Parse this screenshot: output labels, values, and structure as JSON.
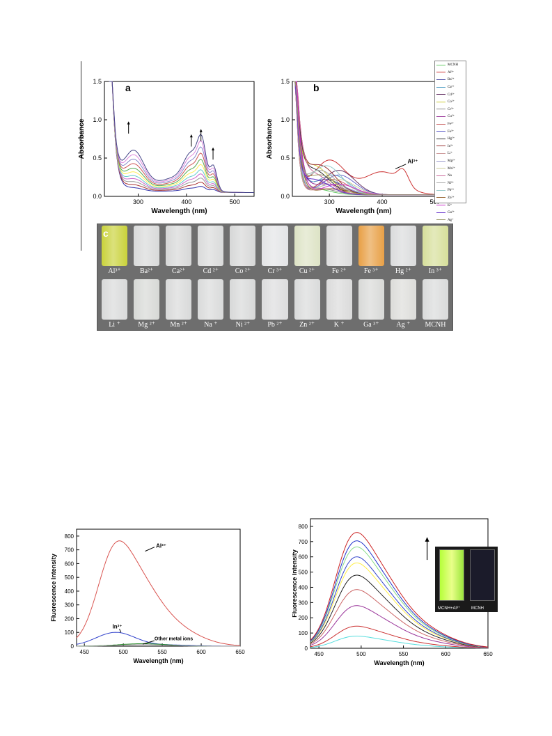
{
  "chart_data": [
    {
      "id": "a",
      "type": "line",
      "panel_label": "a",
      "xlabel": "Wavelength (nm)",
      "ylabel": "Absorbance",
      "xlim": [
        230,
        540
      ],
      "ylim": [
        0,
        1.5
      ],
      "xticks": [
        300,
        400,
        500
      ],
      "yticks": [
        0.0,
        0.5,
        1.0,
        1.5
      ],
      "annotations": [
        "arrow-up-280",
        "arrow-up-410",
        "arrow-up-430",
        "arrow-up-455"
      ],
      "series_peaks": [
        0.06,
        0.1,
        0.14,
        0.18,
        0.22,
        0.27,
        0.32,
        0.38,
        0.44,
        0.5,
        0.56
      ],
      "series_colors": [
        "#3333aa",
        "#aa3333",
        "#999999",
        "#cc66cc",
        "#66cccc",
        "#ffee55",
        "#55aa55",
        "#cc5555",
        "#8888cc",
        "#dd88dd",
        "#444488"
      ]
    },
    {
      "id": "b",
      "type": "line",
      "panel_label": "b",
      "xlabel": "Wavelength (nm)",
      "ylabel": "Absorbance",
      "xlim": [
        230,
        500
      ],
      "ylim": [
        0,
        1.5
      ],
      "xticks": [
        300,
        400,
        500
      ],
      "yticks": [
        0.0,
        0.5,
        1.0,
        1.5
      ],
      "annotation": "Al3+",
      "legend": [
        "MCNH",
        "Al3+",
        "Ba2+",
        "Ca2+",
        "Cd2+",
        "Co2+",
        "Cr3+",
        "Cu2+",
        "Fe2+",
        "Fe3+",
        "Hg2+",
        "In3+",
        "Li+",
        "Mg2+",
        "Mn2+",
        "Na+",
        "Ni2+",
        "Pb2+",
        "Zn2+",
        "K+",
        "Ga3+",
        "Ag+"
      ],
      "legend_display": [
        "MCNH",
        "Al³⁺",
        "Ba²⁺",
        "Ca²⁺",
        "Cd²⁺",
        "Co²⁺",
        "Cr³⁺",
        "Cu²⁺",
        "Fe²⁺",
        "Fe³⁺",
        "Hg²⁺",
        "In³⁺",
        "Li⁺",
        "Mg²⁺",
        "Mn²⁺",
        "Na",
        "Ni²⁺",
        "Pb²⁺",
        "Zn²⁺",
        "K⁺",
        "Ga³⁺",
        "Ag⁺"
      ],
      "legend_colors": [
        "#66cc66",
        "#cc3333",
        "#333399",
        "#66aacc",
        "#663366",
        "#cccc33",
        "#888888",
        "#993399",
        "#cc6666",
        "#6666cc",
        "#333333",
        "#993333",
        "#cc9999",
        "#9999cc",
        "#cccc99",
        "#cc6699",
        "#aaaaaa",
        "#99cccc",
        "#996633",
        "#cc33cc",
        "#6633cc",
        "#999966"
      ]
    },
    {
      "id": "d",
      "type": "line",
      "xlabel": "Wavelength (nm)",
      "ylabel": "Fluorescence Intensity",
      "xlim": [
        440,
        650
      ],
      "ylim": [
        0,
        850
      ],
      "xticks": [
        450,
        500,
        550,
        600,
        650
      ],
      "yticks": [
        0,
        100,
        200,
        300,
        400,
        500,
        600,
        700,
        800
      ],
      "series": [
        {
          "label": "Al3+",
          "peak_x": 505,
          "peak_y": 765,
          "color": "#d9534f"
        },
        {
          "label": "In3+",
          "peak_x": 490,
          "peak_y": 100,
          "color": "#3344cc"
        },
        {
          "label": "Other metal ions",
          "peak_x": 520,
          "peak_y": 20,
          "color": "#228822"
        }
      ]
    },
    {
      "id": "e",
      "type": "line",
      "xlabel": "Wavelength (nm)",
      "ylabel": "Fluorescence Intensity",
      "xlim": [
        440,
        650
      ],
      "ylim": [
        0,
        850
      ],
      "xticks": [
        450,
        500,
        550,
        600,
        650
      ],
      "yticks": [
        0,
        100,
        200,
        300,
        400,
        500,
        600,
        700,
        800
      ],
      "series_peaks": [
        80,
        145,
        280,
        385,
        480,
        560,
        600,
        665,
        705,
        760
      ],
      "series_colors": [
        "#55dddd",
        "#cc3333",
        "#993399",
        "#cc6666",
        "#222222",
        "#ffee44",
        "#3344cc",
        "#88dd88",
        "#2233cc",
        "#cc2222"
      ],
      "inset": {
        "left_label": "MCNH+Al3+",
        "right_label": "MCNH"
      }
    }
  ],
  "photo": {
    "label": "c",
    "row1": [
      {
        "label": "Al³⁺",
        "color": "#c9d23a"
      },
      {
        "label": "Ba²⁺",
        "color": "#d8d9d9"
      },
      {
        "label": "Ca²⁺",
        "color": "#d6d7d7"
      },
      {
        "label": "Cd ²⁺",
        "color": "#d9dada"
      },
      {
        "label": "Co ²⁺",
        "color": "#d6d7d7"
      },
      {
        "label": "Cr ³⁺",
        "color": "#e3e4e6"
      },
      {
        "label": "Cu ²⁺",
        "color": "#dde3c5"
      },
      {
        "label": "Fe ²⁺",
        "color": "#dcdcdc"
      },
      {
        "label": "Fe ³⁺",
        "color": "#e8a046"
      },
      {
        "label": "Hg ²⁺",
        "color": "#dadbdc"
      },
      {
        "label": "In ³⁺",
        "color": "#d6df9a"
      }
    ],
    "row2": [
      {
        "label": "Li ⁺",
        "color": "#d8d9d9"
      },
      {
        "label": "Mg ²⁺",
        "color": "#d6d8d5"
      },
      {
        "label": "Mn ²⁺",
        "color": "#d8d9d9"
      },
      {
        "label": "Na ⁺",
        "color": "#d9dada"
      },
      {
        "label": "Ni ²⁺",
        "color": "#d7d8d8"
      },
      {
        "label": "Pb ²⁺",
        "color": "#dcdcdd"
      },
      {
        "label": "Zn ²⁺",
        "color": "#d9dada"
      },
      {
        "label": "K ⁺",
        "color": "#dadada"
      },
      {
        "label": "Ga ³⁺",
        "color": "#d8d9d7"
      },
      {
        "label": "Ag ⁺",
        "color": "#dcdcd9"
      },
      {
        "label": "MCNH",
        "color": "#d9dada"
      }
    ]
  },
  "labels": {
    "al_annotation_b": "Al³⁺",
    "al_annotation_d": "Al³⁺",
    "in_annotation_d": "In³⁺",
    "other_annotation_d": "Other metal ions",
    "inset_left": "MCNH+Al³⁺",
    "inset_right": "MCNH"
  }
}
